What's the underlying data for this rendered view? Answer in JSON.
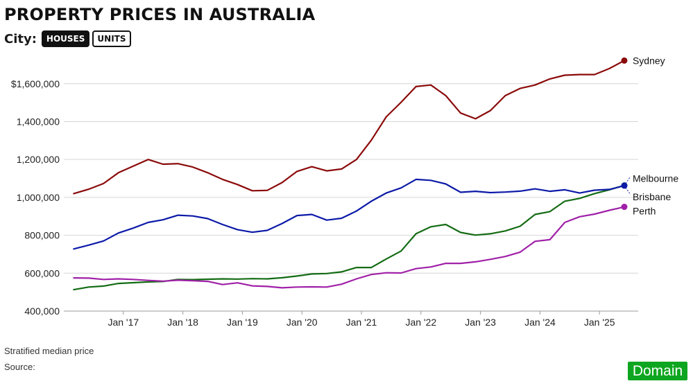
{
  "header": {
    "title": "PROPERTY PRICES IN AUSTRALIA",
    "toggle_label": "City:",
    "toggle_options": [
      "HOUSES",
      "UNITS"
    ],
    "selected": "HOUSES"
  },
  "footer": {
    "note": "Stratified median price",
    "source_label": "Source:",
    "logo_text": "Domain"
  },
  "chart_data": {
    "type": "line",
    "title": "PROPERTY PRICES IN AUSTRALIA",
    "xlabel": "",
    "ylabel": "",
    "ylim": [
      400000,
      1760000
    ],
    "yticks": [
      400000,
      600000,
      800000,
      1000000,
      1200000,
      1400000,
      1600000
    ],
    "ytick_labels": [
      "400,000",
      "600,000",
      "800,000",
      "1,000,000",
      "1,200,000",
      "1,400,000",
      "$1,600,000"
    ],
    "xticks": [
      {
        "t": 2017.0,
        "label": "Jan '17"
      },
      {
        "t": 2018.0,
        "label": "Jan '18"
      },
      {
        "t": 2019.0,
        "label": "Jan '19"
      },
      {
        "t": 2020.0,
        "label": "Jan '20"
      },
      {
        "t": 2021.0,
        "label": "Jan '21"
      },
      {
        "t": 2022.0,
        "label": "Jan '22"
      },
      {
        "t": 2023.0,
        "label": "Jan '23"
      },
      {
        "t": 2024.0,
        "label": "Jan '24"
      },
      {
        "t": 2025.0,
        "label": "Jan '25"
      }
    ],
    "x": [
      "2016-03",
      "2016-06",
      "2016-09",
      "2016-12",
      "2017-03",
      "2017-06",
      "2017-09",
      "2017-12",
      "2018-03",
      "2018-06",
      "2018-09",
      "2018-12",
      "2019-03",
      "2019-06",
      "2019-09",
      "2019-12",
      "2020-03",
      "2020-06",
      "2020-09",
      "2020-12",
      "2021-03",
      "2021-06",
      "2021-09",
      "2021-12",
      "2022-03",
      "2022-06",
      "2022-09",
      "2022-12",
      "2023-03",
      "2023-06",
      "2023-09",
      "2023-12",
      "2024-03",
      "2024-06",
      "2024-09",
      "2024-12",
      "2025-03",
      "2025-06"
    ],
    "series": [
      {
        "name": "Sydney",
        "color": "#8b0a0a",
        "values": [
          1020000,
          1043000,
          1073000,
          1130000,
          1165000,
          1200000,
          1175000,
          1178000,
          1160000,
          1130000,
          1095000,
          1068000,
          1035000,
          1037000,
          1078000,
          1137000,
          1162000,
          1140000,
          1150000,
          1200000,
          1302000,
          1425000,
          1502000,
          1585000,
          1593000,
          1537000,
          1445000,
          1415000,
          1458000,
          1537000,
          1575000,
          1593000,
          1625000,
          1645000,
          1648000,
          1648000,
          1680000,
          1722000
        ]
      },
      {
        "name": "Melbourne",
        "color": "#136b13",
        "values": [
          513000,
          527000,
          532000,
          546000,
          550000,
          554000,
          556000,
          567000,
          566000,
          568000,
          570000,
          569000,
          571000,
          570000,
          576000,
          585000,
          596000,
          598000,
          607000,
          630000,
          630000,
          675000,
          717000,
          808000,
          845000,
          857000,
          815000,
          801000,
          808000,
          823000,
          848000,
          910000,
          925000,
          980000,
          995000,
          1020000,
          1040000,
          1063000
        ]
      },
      {
        "name": "Brisbane",
        "color": "#0c1aa8",
        "values": [
          728000,
          748000,
          770000,
          812000,
          838000,
          868000,
          882000,
          906000,
          902000,
          888000,
          857000,
          830000,
          816000,
          826000,
          862000,
          904000,
          910000,
          880000,
          890000,
          928000,
          980000,
          1023000,
          1050000,
          1095000,
          1090000,
          1071000,
          1027000,
          1032000,
          1025000,
          1028000,
          1033000,
          1045000,
          1032000,
          1040000,
          1023000,
          1038000,
          1042000,
          1062000
        ]
      },
      {
        "name": "Perth",
        "color": "#a020a8",
        "values": [
          575000,
          574000,
          567000,
          570000,
          567000,
          562000,
          558000,
          563000,
          560000,
          557000,
          540000,
          549000,
          533000,
          530000,
          523000,
          527000,
          528000,
          527000,
          542000,
          570000,
          593000,
          602000,
          601000,
          624000,
          633000,
          652000,
          652000,
          660000,
          673000,
          688000,
          711000,
          768000,
          777000,
          868000,
          898000,
          912000,
          932000,
          950000
        ]
      }
    ],
    "legend": "right-end labels",
    "grid": "horizontal"
  }
}
